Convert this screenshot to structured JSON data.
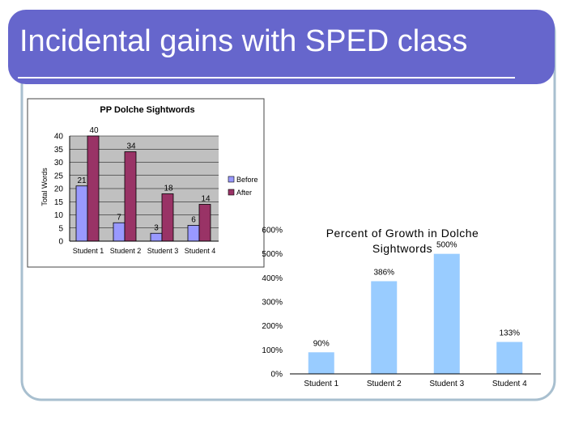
{
  "slide": {
    "title": "Incidental gains with SPED class",
    "colors": {
      "banner": "#6666cc",
      "frame_border": "#a8bfcf",
      "title_text": "#ffffff"
    }
  },
  "chart_data": [
    {
      "type": "bar",
      "title": "PP Dolche Sightwords",
      "xlabel": "",
      "ylabel": "Total Words",
      "categories": [
        "Student 1",
        "Student 2",
        "Student 3",
        "Student 4"
      ],
      "series": [
        {
          "name": "Before",
          "values": [
            21,
            7,
            3,
            6
          ],
          "color": "#9999ff"
        },
        {
          "name": "After",
          "values": [
            40,
            34,
            18,
            14
          ],
          "color": "#993366"
        }
      ],
      "ylim": [
        0,
        40
      ],
      "yticks": [
        0,
        5,
        10,
        15,
        20,
        25,
        30,
        35,
        40
      ],
      "grid": true,
      "legend": "right",
      "plot_background": "#c0c0c0"
    },
    {
      "type": "bar",
      "title": "Percent of Growth in Dolche Sightwords",
      "xlabel": "",
      "ylabel": "",
      "categories": [
        "Student 1",
        "Student 2",
        "Student 3",
        "Student 4"
      ],
      "series": [
        {
          "values": [
            90,
            386,
            500,
            133
          ],
          "color": "#99ccff"
        }
      ],
      "value_labels": [
        "90%",
        "386%",
        "500%",
        "133%"
      ],
      "ylim": [
        0,
        600
      ],
      "yticks": [
        0,
        100,
        200,
        300,
        400,
        500,
        600
      ],
      "ytick_labels": [
        "0%",
        "100%",
        "200%",
        "300%",
        "400%",
        "500%",
        "600%"
      ],
      "grid": false,
      "legend": "none"
    }
  ]
}
